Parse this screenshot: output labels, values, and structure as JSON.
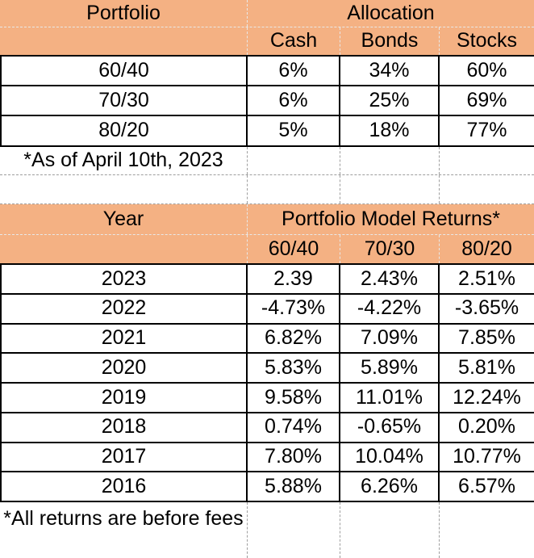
{
  "colors": {
    "header_fill": "#F4B183",
    "table_border": "#000000",
    "gridline": "#9E9E9E",
    "gridline_on_fill": "#E8E8E8",
    "text": "#000000",
    "background": "#FFFFFF"
  },
  "allocation_table": {
    "header": "Portfolio",
    "group_header": "Allocation",
    "sub_headers": [
      "Cash",
      "Bonds",
      "Stocks"
    ],
    "rows": [
      [
        "60/40",
        "6%",
        "34%",
        "60%"
      ],
      [
        "70/30",
        "6%",
        "25%",
        "69%"
      ],
      [
        "80/20",
        "5%",
        "18%",
        "77%"
      ]
    ],
    "footnote": "*As of April 10th, 2023"
  },
  "returns_table": {
    "header": "Year",
    "group_header": "Portfolio Model Returns*",
    "sub_headers": [
      "60/40",
      "70/30",
      "80/20"
    ],
    "rows": [
      [
        "2023",
        "2.39",
        "2.43%",
        "2.51%"
      ],
      [
        "2022",
        "-4.73%",
        "-4.22%",
        "-3.65%"
      ],
      [
        "2021",
        "6.82%",
        "7.09%",
        "7.85%"
      ],
      [
        "2020",
        "5.83%",
        "5.89%",
        "5.81%"
      ],
      [
        "2019",
        "9.58%",
        "11.01%",
        "12.24%"
      ],
      [
        "2018",
        "0.74%",
        "-0.65%",
        "0.20%"
      ],
      [
        "2017",
        "7.80%",
        "10.04%",
        "10.77%"
      ],
      [
        "2016",
        "5.88%",
        "6.26%",
        "6.57%"
      ]
    ],
    "footnote": "*All returns are before fees"
  }
}
